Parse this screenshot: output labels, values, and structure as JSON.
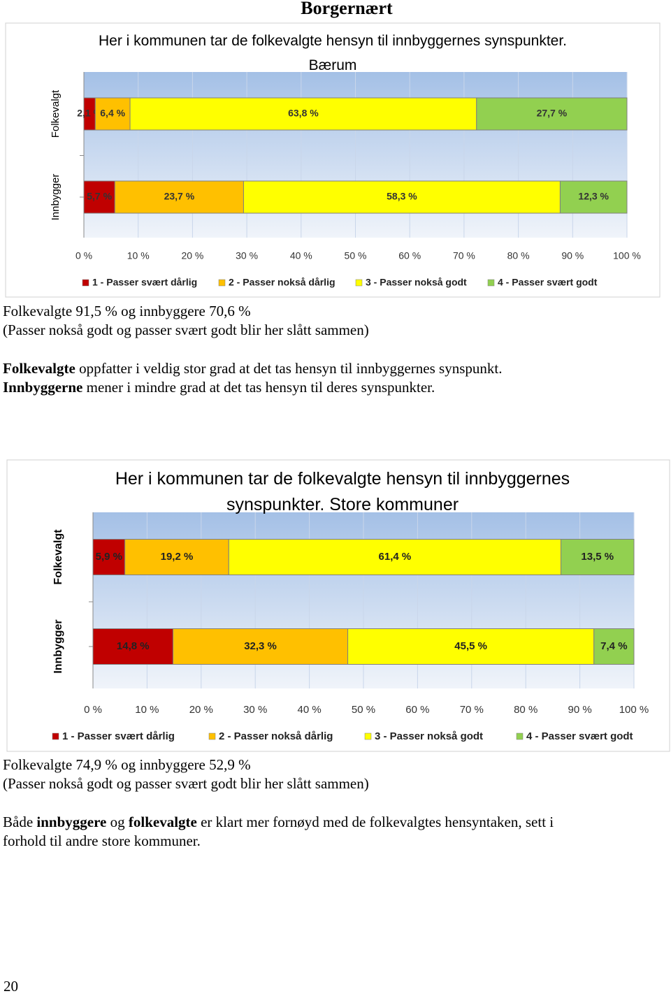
{
  "heading": "Borgernært",
  "chart_data": [
    {
      "type": "stacked-bar-horizontal",
      "title": "Her i kommunen tar de folkevalgte hensyn til innbyggernes synspunkter.",
      "subtitle": "Bærum",
      "categories": [
        "Folkevalgt",
        "Innbygger"
      ],
      "series": [
        {
          "name": "1 - Passer svært dårlig",
          "color": "#c00000",
          "values": [
            2.1,
            5.7
          ],
          "value_labels": [
            "2,1 %",
            "5,7 %"
          ]
        },
        {
          "name": "2 - Passer nokså dårlig",
          "color": "#ffc000",
          "values": [
            6.4,
            23.7
          ],
          "value_labels": [
            "6,4 %",
            "23,7 %"
          ]
        },
        {
          "name": "3 - Passer nokså godt",
          "color": "#ffff00",
          "values": [
            63.8,
            58.3
          ],
          "value_labels": [
            "63,8 %",
            "58,3 %"
          ]
        },
        {
          "name": "4 - Passer svært godt",
          "color": "#92d050",
          "values": [
            27.7,
            12.3
          ],
          "value_labels": [
            "27,7 %",
            "12,3 %"
          ]
        }
      ],
      "xlim": [
        0,
        100
      ],
      "xticks": [
        {
          "value": 0,
          "label": "0 %"
        },
        {
          "value": 10,
          "label": "10 %"
        },
        {
          "value": 20,
          "label": "20 %"
        },
        {
          "value": 30,
          "label": "30 %"
        },
        {
          "value": 40,
          "label": "40 %"
        },
        {
          "value": 50,
          "label": "50 %"
        },
        {
          "value": 60,
          "label": "60 %"
        },
        {
          "value": 70,
          "label": "70 %"
        },
        {
          "value": 80,
          "label": "80 %"
        },
        {
          "value": 90,
          "label": "90 %"
        },
        {
          "value": 100,
          "label": "100 %"
        }
      ],
      "grid": true,
      "legend": "bottom"
    },
    {
      "type": "stacked-bar-horizontal",
      "title": "Her i kommunen tar de folkevalgte hensyn til innbyggernes synspunkter. Store kommuner",
      "categories": [
        "Folkevalgt",
        "Innbygger"
      ],
      "series": [
        {
          "name": "1 - Passer svært dårlig",
          "color": "#c00000",
          "values": [
            5.9,
            14.8
          ],
          "value_labels": [
            "5,9 %",
            "14,8 %"
          ]
        },
        {
          "name": "2 - Passer nokså dårlig",
          "color": "#ffc000",
          "values": [
            19.2,
            32.3
          ],
          "value_labels": [
            "19,2 %",
            "32,3 %"
          ]
        },
        {
          "name": "3 - Passer nokså godt",
          "color": "#ffff00",
          "values": [
            61.4,
            45.5
          ],
          "value_labels": [
            "61,4 %",
            "45,5 %"
          ]
        },
        {
          "name": "4 - Passer svært godt",
          "color": "#92d050",
          "values": [
            13.5,
            7.4
          ],
          "value_labels": [
            "13,5 %",
            "7,4 %"
          ]
        }
      ],
      "xlim": [
        0,
        100
      ],
      "xticks": [
        {
          "value": 0,
          "label": "0 %"
        },
        {
          "value": 10,
          "label": "10 %"
        },
        {
          "value": 20,
          "label": "20 %"
        },
        {
          "value": 30,
          "label": "30 %"
        },
        {
          "value": 40,
          "label": "40 %"
        },
        {
          "value": 50,
          "label": "50 %"
        },
        {
          "value": 60,
          "label": "60 %"
        },
        {
          "value": 70,
          "label": "70 %"
        },
        {
          "value": 80,
          "label": "80 %"
        },
        {
          "value": 90,
          "label": "90 %"
        },
        {
          "value": 100,
          "label": "100 %"
        }
      ],
      "grid": true,
      "legend": "bottom"
    }
  ],
  "summary_1": [
    [
      {
        "text": "Folkevalgte 91,5 % og innbyggere 70,6 %",
        "bold": false
      }
    ],
    [
      {
        "text": "(Passer nokså godt og passer svært godt blir her slått sammen)",
        "bold": false
      }
    ],
    [
      {
        "text": "Folkevalgte",
        "bold": true
      },
      {
        "text": " oppfatter i veldig stor grad at det tas hensyn til innbyggernes synspunkt.",
        "bold": false
      }
    ],
    [
      {
        "text": "Innbyggerne",
        "bold": true
      },
      {
        "text": " mener i mindre grad at det tas hensyn til deres synspunkter.",
        "bold": false
      }
    ]
  ],
  "summary_2": [
    [
      {
        "text": "Folkevalgte 74,9 % og innbyggere 52,9 %",
        "bold": false
      }
    ],
    [
      {
        "text": "(Passer nokså godt og passer svært godt blir her slått sammen)",
        "bold": false
      }
    ],
    [
      {
        "text": "Både ",
        "bold": false
      },
      {
        "text": "innbyggere",
        "bold": true
      },
      {
        "text": " og ",
        "bold": false
      },
      {
        "text": "folkevalgte",
        "bold": true
      },
      {
        "text": " er klart mer fornøyd med de folkevalgtes hensyntaken, sett i",
        "bold": false
      }
    ],
    [
      {
        "text": "forhold til andre store kommuner.",
        "bold": false
      }
    ]
  ],
  "page_number": "20"
}
